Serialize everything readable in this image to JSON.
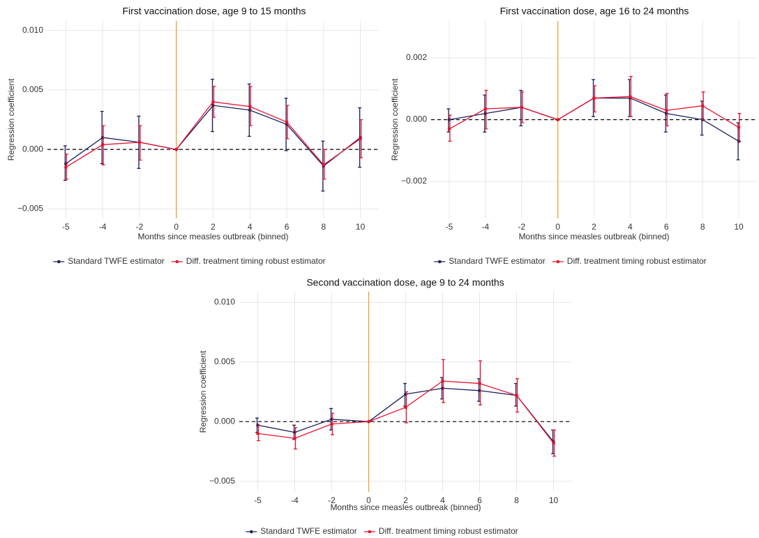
{
  "chart_data": [
    {
      "type": "line",
      "title": "First vaccination dose, age 9 to 15 months",
      "x_label": "Months since measles outbreak (binned)",
      "y_label": "Regression coefficient",
      "categories": [
        "-5",
        "-4",
        "-2",
        "0",
        "2",
        "4",
        "6",
        "8",
        "10"
      ],
      "series": [
        {
          "name": "Standard TWFE estimator",
          "color": "#1a1f5c",
          "values": [
            -0.0012,
            0.001,
            0.0006,
            0,
            0.0037,
            0.0033,
            0.0021,
            -0.0014,
            0.001
          ],
          "lower": [
            -0.0026,
            -0.0012,
            -0.0016,
            0,
            0.0015,
            0.0011,
            -0.0001,
            -0.0035,
            -0.0015
          ],
          "upper": [
            0.0003,
            0.0032,
            0.0028,
            0,
            0.0059,
            0.0055,
            0.0043,
            0.0007,
            0.0035
          ]
        },
        {
          "name": "Diff. treatment timing robust estimator",
          "color": "#e8112d",
          "values": [
            -0.0015,
            0.0004,
            0.0006,
            0,
            0.004,
            0.0036,
            0.0023,
            -0.0013,
            0.0009
          ],
          "lower": [
            -0.0025,
            -0.0013,
            -0.0009,
            0,
            0.0027,
            0.002,
            0.0009,
            -0.0025,
            -0.0007
          ],
          "upper": [
            -0.0004,
            0.002,
            0.002,
            0,
            0.0053,
            0.0053,
            0.0037,
            0.0,
            0.0025
          ]
        }
      ],
      "ylim": [
        -0.0058,
        0.0108
      ],
      "yticks": [
        {
          "value": -0.005,
          "label": "−0.005"
        },
        {
          "value": 0,
          "label": "0.000"
        },
        {
          "value": 0.005,
          "label": "0.005"
        },
        {
          "value": 0.01,
          "label": "0.010"
        }
      ],
      "vline": "0",
      "vline_color": "#f0a030",
      "hline": 0,
      "grid": true,
      "legend": "bottom"
    },
    {
      "type": "line",
      "title": "First vaccination dose, age 16 to 24 months",
      "x_label": "Months since measles outbreak (binned)",
      "y_label": "Regression coefficient",
      "categories": [
        "-5",
        "-4",
        "-2",
        "0",
        "2",
        "4",
        "6",
        "8",
        "10"
      ],
      "series": [
        {
          "name": "Standard TWFE estimator",
          "color": "#1a1f5c",
          "values": [
            0.0,
            0.0002,
            0.0004,
            0,
            0.0007,
            0.0007,
            0.0002,
            0.0,
            -0.0007
          ],
          "lower": [
            -0.0004,
            -0.0004,
            -0.0002,
            0,
            0.0001,
            0.0001,
            -0.0004,
            -0.0005,
            -0.0013
          ],
          "upper": [
            0.00035,
            0.0008,
            0.00095,
            0,
            0.0013,
            0.0013,
            0.0008,
            0.0006,
            -0.0001
          ]
        },
        {
          "name": "Diff. treatment timing robust estimator",
          "color": "#e8112d",
          "values": [
            -0.0003,
            0.00035,
            0.0004,
            0,
            0.0007,
            0.00075,
            0.0003,
            0.00045,
            -0.00025
          ],
          "lower": [
            -0.0007,
            -0.0003,
            -0.0001,
            0,
            0.00025,
            0.0001,
            -0.0002,
            0.0,
            -0.0007
          ],
          "upper": [
            0.00015,
            0.00095,
            0.0009,
            0,
            0.0011,
            0.0014,
            0.00085,
            0.0009,
            0.0002
          ]
        }
      ],
      "ylim": [
        -0.0032,
        0.0032
      ],
      "yticks": [
        {
          "value": -0.002,
          "label": "−0.002"
        },
        {
          "value": 0,
          "label": "0.000"
        },
        {
          "value": 0.002,
          "label": "0.002"
        }
      ],
      "vline": "0",
      "vline_color": "#f0a030",
      "hline": 0,
      "grid": true,
      "legend": "bottom"
    },
    {
      "type": "line",
      "title": "Second vaccination dose, age 9 to 24 months",
      "x_label": "Months since measles outbreak (binned)",
      "y_label": "Regression coefficient",
      "categories": [
        "-5",
        "-4",
        "-2",
        "0",
        "2",
        "4",
        "6",
        "8",
        "10"
      ],
      "series": [
        {
          "name": "Standard TWFE estimator",
          "color": "#1a1f5c",
          "values": [
            -0.0003,
            -0.0009,
            0.0002,
            0,
            0.0023,
            0.0028,
            0.0026,
            0.0022,
            -0.0017
          ],
          "lower": [
            -0.0009,
            -0.0015,
            -0.0007,
            0,
            0.0013,
            0.0019,
            0.0017,
            0.0013,
            -0.0027
          ],
          "upper": [
            0.0003,
            -0.0003,
            0.0011,
            0,
            0.0032,
            0.0037,
            0.0036,
            0.0032,
            -0.0007
          ]
        },
        {
          "name": "Diff. treatment timing robust estimator",
          "color": "#e8112d",
          "values": [
            -0.001,
            -0.0014,
            -0.0002,
            0,
            0.0012,
            0.0034,
            0.0032,
            0.0022,
            -0.0018
          ],
          "lower": [
            -0.0016,
            -0.0023,
            -0.0011,
            0,
            -0.0001,
            0.0016,
            0.0014,
            0.0008,
            -0.0029
          ],
          "upper": [
            -0.0003,
            -0.0005,
            0.0007,
            0,
            0.0025,
            0.0052,
            0.0051,
            0.0036,
            -0.0007
          ]
        }
      ],
      "ylim": [
        -0.0059,
        0.0109
      ],
      "yticks": [
        {
          "value": -0.005,
          "label": "−0.005"
        },
        {
          "value": 0,
          "label": "0.000"
        },
        {
          "value": 0.005,
          "label": "0.005"
        },
        {
          "value": 0.01,
          "label": "0.010"
        }
      ],
      "vline": "0",
      "vline_color": "#f0a030",
      "hline": 0,
      "grid": true,
      "legend": "bottom"
    }
  ]
}
